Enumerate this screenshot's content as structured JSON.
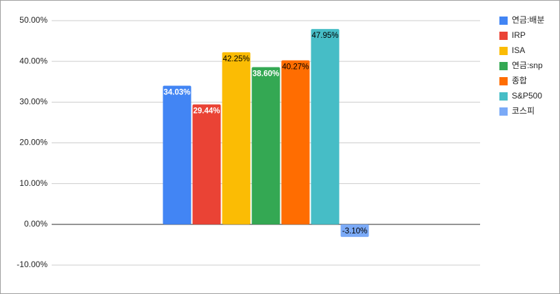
{
  "chart_data": {
    "type": "bar",
    "categories": [
      null
    ],
    "series": [
      {
        "name": "연금:배분",
        "color": "#4285f4",
        "label_color": "#ffffff",
        "values": [
          34.03
        ],
        "value_labels": [
          "34.03%"
        ]
      },
      {
        "name": "IRP",
        "color": "#ea4335",
        "label_color": "#ffffff",
        "values": [
          29.44
        ],
        "value_labels": [
          "29.44%"
        ]
      },
      {
        "name": "ISA",
        "color": "#fbbc04",
        "label_color": "#000000",
        "values": [
          42.25
        ],
        "value_labels": [
          "42.25%"
        ]
      },
      {
        "name": "연금:snp",
        "color": "#34a853",
        "label_color": "#ffffff",
        "values": [
          38.6
        ],
        "value_labels": [
          "38.60%"
        ]
      },
      {
        "name": "종합",
        "color": "#ff6d01",
        "label_color": "#000000",
        "values": [
          40.27
        ],
        "value_labels": [
          "40.27%"
        ]
      },
      {
        "name": "S&P500",
        "color": "#46bdc6",
        "label_color": "#000000",
        "values": [
          47.95
        ],
        "value_labels": [
          "47.95%"
        ]
      },
      {
        "name": "코스피",
        "color": "#7baaf7",
        "label_color": "#000000",
        "values": [
          -3.1
        ],
        "value_labels": [
          "-3.10%"
        ]
      }
    ],
    "ylim": [
      -10,
      50
    ],
    "yticks": [
      {
        "value": -10,
        "label": "-10.00%"
      },
      {
        "value": 0,
        "label": "0.00%"
      },
      {
        "value": 10,
        "label": "10.00%"
      },
      {
        "value": 20,
        "label": "20.00%"
      },
      {
        "value": 30,
        "label": "30.00%"
      },
      {
        "value": 40,
        "label": "40.00%"
      },
      {
        "value": 50,
        "label": "50.00%"
      }
    ],
    "grid": true,
    "legend": "right"
  }
}
